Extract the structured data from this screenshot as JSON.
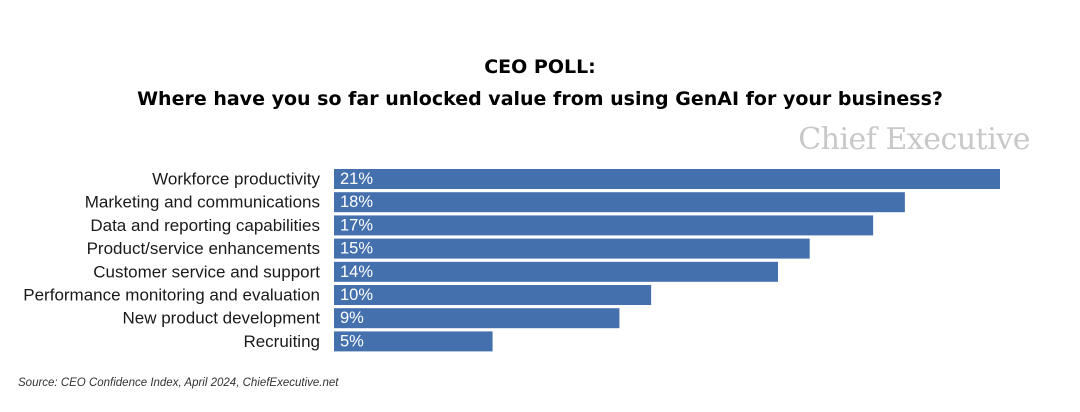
{
  "chart_data": {
    "type": "bar",
    "orientation": "horizontal",
    "title": "CEO POLL:",
    "subtitle": "Where have you so far unlocked value from using GenAI for your business?",
    "categories": [
      "Workforce productivity",
      "Marketing and communications",
      "Data and reporting capabilities",
      "Product/service enhancements",
      "Customer service and support",
      "Performance monitoring and evaluation",
      "New product development",
      "Recruiting"
    ],
    "values": [
      21,
      18,
      17,
      15,
      14,
      10,
      9,
      5
    ],
    "value_labels": [
      "21%",
      "18%",
      "17%",
      "15%",
      "14%",
      "10%",
      "9%",
      "5%"
    ],
    "unit": "%",
    "xlim": [
      0,
      21
    ],
    "grid": false,
    "bar_color": "#4470ad"
  },
  "branding": {
    "logo_text": "Chief Executive",
    "logo_color": "#c8c8c8"
  },
  "footer": {
    "source": "Source: CEO Confidence Index, April 2024, ChiefExecutive.net"
  }
}
